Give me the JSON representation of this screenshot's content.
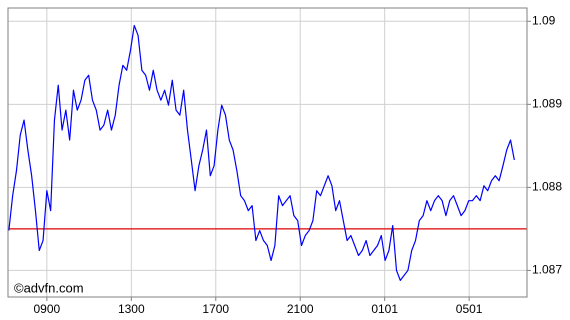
{
  "chart_data": {
    "type": "line",
    "watermark": "©advfn.com",
    "y_axis_side": "right",
    "grid": true,
    "xlim": [
      7.16,
      31.74
    ],
    "ylim": [
      1.08668,
      1.09016
    ],
    "xticks": [
      {
        "value": 9,
        "label": "0900"
      },
      {
        "value": 13,
        "label": "1300"
      },
      {
        "value": 17,
        "label": "1700"
      },
      {
        "value": 21,
        "label": "2100"
      },
      {
        "value": 25,
        "label": "0101"
      },
      {
        "value": 29,
        "label": "0501"
      }
    ],
    "yticks": [
      1.087,
      1.088,
      1.089,
      1.09
    ],
    "reference_line": {
      "value": 1.0875,
      "color": "#e00000"
    },
    "x": [
      7.2,
      7.38,
      7.56,
      7.74,
      7.92,
      8.1,
      8.28,
      8.46,
      8.64,
      8.82,
      9,
      9.18,
      9.36,
      9.54,
      9.72,
      9.9,
      10.08,
      10.26,
      10.44,
      10.62,
      10.8,
      10.98,
      11.16,
      11.34,
      11.52,
      11.7,
      11.88,
      12.06,
      12.24,
      12.42,
      12.6,
      12.78,
      12.96,
      13.14,
      13.32,
      13.5,
      13.68,
      13.86,
      14.04,
      14.22,
      14.4,
      14.58,
      14.76,
      14.94,
      15.12,
      15.3,
      15.48,
      15.66,
      15.84,
      16.02,
      16.2,
      16.38,
      16.56,
      16.74,
      16.92,
      17.1,
      17.28,
      17.46,
      17.64,
      17.82,
      18,
      18.18,
      18.36,
      18.54,
      18.72,
      18.9,
      19.08,
      19.26,
      19.44,
      19.62,
      19.8,
      19.98,
      20.16,
      20.34,
      20.52,
      20.7,
      20.88,
      21.06,
      21.24,
      21.42,
      21.6,
      21.78,
      21.96,
      22.14,
      22.32,
      22.5,
      22.68,
      22.86,
      23.04,
      23.22,
      23.4,
      23.58,
      23.76,
      23.94,
      24.12,
      24.3,
      24.48,
      24.66,
      24.84,
      25.02,
      25.2,
      25.38,
      25.56,
      25.74,
      25.92,
      26.1,
      26.28,
      26.46,
      26.64,
      26.82,
      27,
      27.18,
      27.36,
      27.54,
      27.72,
      27.9,
      28.08,
      28.26,
      28.44,
      28.62,
      28.8,
      28.98,
      29.16,
      29.34,
      29.52,
      29.7,
      29.88,
      30.06,
      30.24,
      30.42,
      30.6,
      30.78,
      30.96,
      31.14
    ],
    "series": [
      {
        "color": "#0000ff",
        "values": [
          1.08748,
          1.0879,
          1.0882,
          1.08863,
          1.08881,
          1.08845,
          1.08814,
          1.08772,
          1.08724,
          1.08736,
          1.08796,
          1.08772,
          1.08881,
          1.08923,
          1.08869,
          1.08893,
          1.08857,
          1.08917,
          1.08893,
          1.08905,
          1.08929,
          1.08935,
          1.08905,
          1.08893,
          1.08869,
          1.08875,
          1.08893,
          1.08869,
          1.08887,
          1.08923,
          1.08947,
          1.08941,
          1.08965,
          1.08995,
          1.08983,
          1.08941,
          1.08935,
          1.08917,
          1.08941,
          1.08917,
          1.08905,
          1.08917,
          1.08899,
          1.08929,
          1.08893,
          1.08887,
          1.08917,
          1.08869,
          1.08833,
          1.08796,
          1.08826,
          1.08845,
          1.08869,
          1.08814,
          1.08826,
          1.08869,
          1.08899,
          1.08887,
          1.08857,
          1.08845,
          1.0882,
          1.0879,
          1.08784,
          1.08772,
          1.08778,
          1.08736,
          1.08748,
          1.08736,
          1.0873,
          1.08712,
          1.0873,
          1.0879,
          1.08778,
          1.08784,
          1.0879,
          1.08766,
          1.0876,
          1.0873,
          1.08742,
          1.08748,
          1.0876,
          1.08796,
          1.0879,
          1.08802,
          1.08814,
          1.08802,
          1.08772,
          1.08784,
          1.0876,
          1.08736,
          1.08742,
          1.0873,
          1.08718,
          1.08724,
          1.08736,
          1.08718,
          1.08724,
          1.0873,
          1.08742,
          1.08712,
          1.08724,
          1.08754,
          1.087,
          1.08688,
          1.08694,
          1.087,
          1.08724,
          1.08736,
          1.0876,
          1.08766,
          1.08784,
          1.08772,
          1.08784,
          1.0879,
          1.08784,
          1.08766,
          1.08784,
          1.0879,
          1.08778,
          1.08766,
          1.08772,
          1.08784,
          1.08784,
          1.0879,
          1.08784,
          1.08802,
          1.08796,
          1.08808,
          1.08814,
          1.08808,
          1.08826,
          1.08845,
          1.08857,
          1.08833
        ]
      }
    ]
  }
}
